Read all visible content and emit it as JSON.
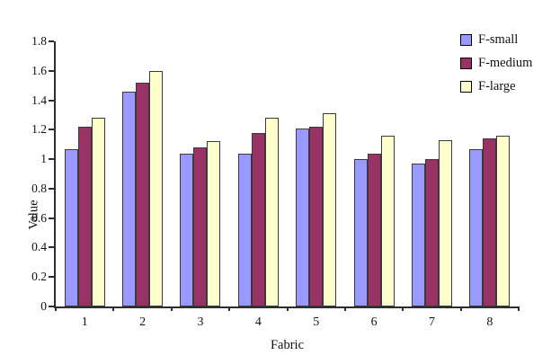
{
  "chart_data": {
    "type": "bar",
    "title": "",
    "xlabel": "Fabric",
    "ylabel": "Value",
    "categories": [
      "1",
      "2",
      "3",
      "4",
      "5",
      "6",
      "7",
      "8"
    ],
    "series": [
      {
        "name": "F-small",
        "color": "#9999FF",
        "values": [
          1.07,
          1.46,
          1.04,
          1.04,
          1.21,
          1.0,
          0.97,
          1.07
        ]
      },
      {
        "name": "F-medium",
        "color": "#993366",
        "values": [
          1.22,
          1.52,
          1.08,
          1.18,
          1.22,
          1.04,
          1.0,
          1.14
        ]
      },
      {
        "name": "F-large",
        "color": "#FFFFCC",
        "values": [
          1.28,
          1.6,
          1.12,
          1.28,
          1.31,
          1.16,
          1.13,
          1.16
        ]
      }
    ],
    "ylim": [
      0,
      1.8
    ],
    "ytick_step": 0.2,
    "ytick_labels": [
      "0",
      "0.2",
      "0.4",
      "0.6",
      "0.8",
      "1",
      "1.2",
      "1.4",
      "1.6",
      "1.8"
    ],
    "legend_position": "top-right",
    "grid": false,
    "background_color": "#FFFFFF",
    "axis_color": "#2e2e2e"
  }
}
